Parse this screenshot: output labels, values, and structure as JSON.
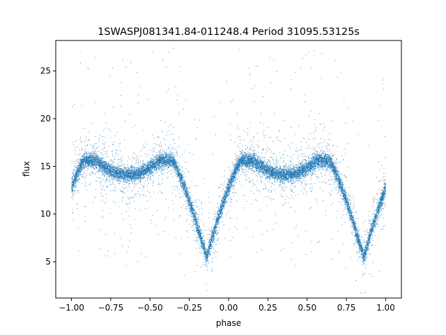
{
  "chart_data": {
    "type": "scatter",
    "title": "1SWASPJ081341.84-011248.4 Period 31095.53125s",
    "xlabel": "phase",
    "ylabel": "flux",
    "xlim": [
      -1.1,
      1.1
    ],
    "ylim": [
      1.2,
      28.2
    ],
    "xticks": [
      -1.0,
      -0.75,
      -0.5,
      -0.25,
      0.0,
      0.25,
      0.5,
      0.75,
      1.0
    ],
    "xtick_labels": [
      "−1.00",
      "−0.75",
      "−0.50",
      "−0.25",
      "0.00",
      "0.25",
      "0.50",
      "0.75",
      "1.00"
    ],
    "yticks": [
      5,
      10,
      15,
      20,
      25
    ],
    "ytick_labels": [
      "5",
      "10",
      "15",
      "20",
      "25"
    ],
    "grid": false,
    "marker_color": "#1f77b4",
    "period_phase": 1.0,
    "baseline_flux": 15.6,
    "primary_eclipse": {
      "phase_center": -0.14,
      "min_flux": 5.5,
      "half_width_phase": 0.22
    },
    "secondary_eclipse": {
      "phase_center": 0.36,
      "min_flux": 14.1,
      "half_width_phase": 0.2
    },
    "series": [
      {
        "name": "",
        "x_range": [
          -1.0,
          1.0
        ],
        "n_points": 15000
      }
    ]
  }
}
